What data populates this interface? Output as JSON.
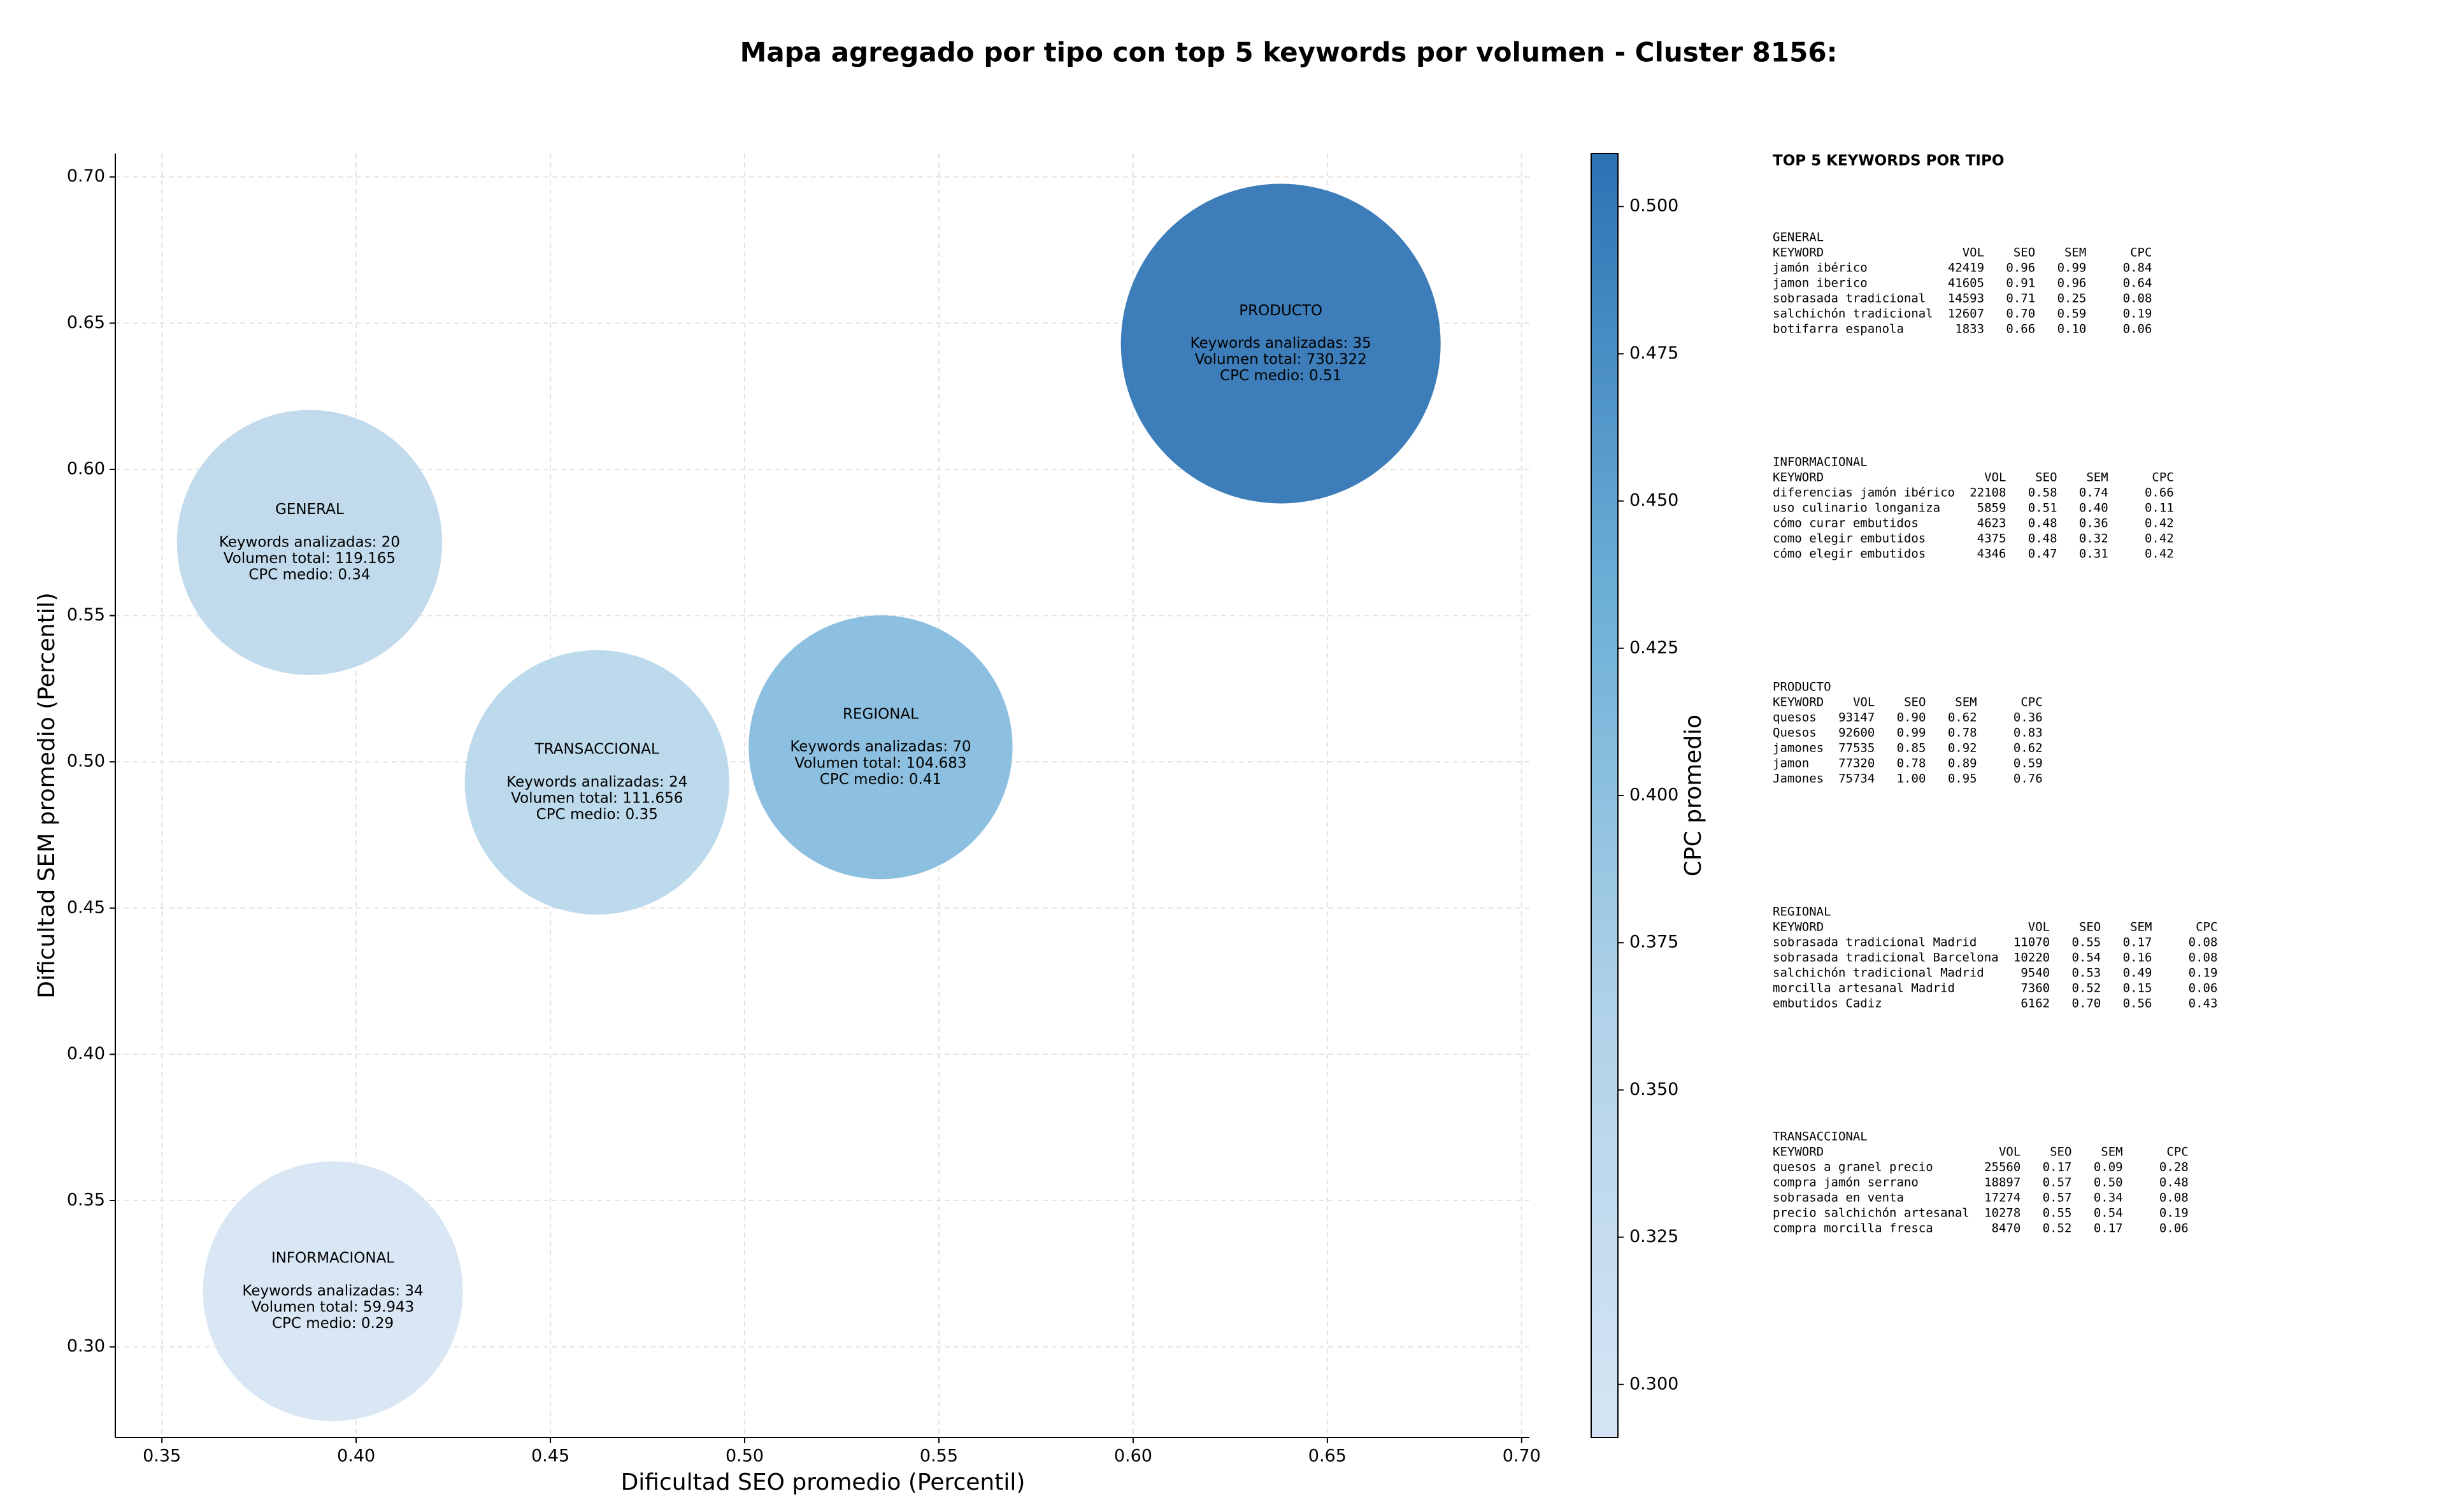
{
  "chart_data": {
    "type": "bubble",
    "title": "Mapa agregado por tipo con top 5 keywords por volumen - Cluster 8156:",
    "xlabel": "Dificultad SEO promedio (Percentil)",
    "ylabel": "Dificultad SEM promedio (Percentil)",
    "names": [
      "GENERAL",
      "TRANSACCIONAL",
      "REGIONAL",
      "PRODUCTO",
      "INFORMACIONAL"
    ],
    "x": [
      0.388,
      0.462,
      0.535,
      0.638,
      0.394
    ],
    "y": [
      0.575,
      0.493,
      0.505,
      0.643,
      0.319
    ],
    "sizes": [
      119165,
      111656,
      104683,
      730322,
      59943
    ],
    "cpc": [
      0.34,
      0.35,
      0.41,
      0.51,
      0.29
    ],
    "annotations": [
      [
        "Keywords analizadas: 20",
        "Volumen total: 119.165",
        "CPC medio: 0.34"
      ],
      [
        "Keywords analizadas: 24",
        "Volumen total: 111.656",
        "CPC medio: 0.35"
      ],
      [
        "Keywords analizadas: 70",
        "Volumen total: 104.683",
        "CPC medio: 0.41"
      ],
      [
        "Keywords analizadas: 35",
        "Volumen total: 730.322",
        "CPC medio: 0.51"
      ],
      [
        "Keywords analizadas: 34",
        "Volumen total: 59.943",
        "CPC medio: 0.29"
      ]
    ],
    "xlim": [
      0.338,
      0.702
    ],
    "ylim": [
      0.269,
      0.708
    ],
    "xticks": [
      0.35,
      {
        "value": 0.4,
        "label": "0.40"
      },
      0.45,
      {
        "value": 0.5,
        "label": "0.50"
      },
      0.55,
      {
        "value": 0.6,
        "label": "0.60"
      },
      0.65,
      {
        "value": 0.7,
        "label": "0.70"
      }
    ],
    "yticks": [
      {
        "value": 0.3,
        "label": "0.30"
      },
      0.35,
      {
        "value": 0.4,
        "label": "0.40"
      },
      0.45,
      {
        "value": 0.5,
        "label": "0.50"
      },
      0.55,
      {
        "value": 0.6,
        "label": "0.60"
      },
      0.65,
      {
        "value": 0.7,
        "label": "0.70"
      }
    ],
    "grid": true,
    "colorbar": {
      "label": "CPC promedio",
      "clim": [
        0.291,
        0.509
      ],
      "colormap": [
        "#d6e5f4",
        "#b0d2e8",
        "#6aaed6",
        "#2c72b4"
      ],
      "ticks": [
        {
          "value": 0.3,
          "label": "0.300"
        },
        0.325,
        {
          "value": 0.35,
          "label": "0.350"
        },
        0.375,
        {
          "value": 0.4,
          "label": "0.400"
        },
        0.425,
        {
          "value": 0.45,
          "label": "0.450"
        },
        0.475,
        {
          "value": 0.5,
          "label": "0.500"
        }
      ]
    }
  },
  "side_panel": {
    "title": "TOP 5 KEYWORDS POR TIPO",
    "columns": [
      "KEYWORD",
      "VOL",
      "SEO",
      "SEM",
      "CPC"
    ],
    "tables": [
      {
        "name": "GENERAL",
        "rows": [
          [
            "jamón ibérico",
            "42419",
            "0.96",
            "0.99",
            "0.84"
          ],
          [
            "jamon iberico",
            "41605",
            "0.91",
            "0.96",
            "0.64"
          ],
          [
            "sobrasada tradicional",
            "14593",
            "0.71",
            "0.25",
            "0.08"
          ],
          [
            "salchichón tradicional",
            "12607",
            "0.70",
            "0.59",
            "0.19"
          ],
          [
            "botifarra espanola",
            "1833",
            "0.66",
            "0.10",
            "0.06"
          ]
        ]
      },
      {
        "name": "INFORMACIONAL",
        "rows": [
          [
            "diferencias jamón ibérico",
            "22108",
            "0.58",
            "0.74",
            "0.66"
          ],
          [
            "uso culinario longaniza",
            "5859",
            "0.51",
            "0.40",
            "0.11"
          ],
          [
            "cómo curar embutidos",
            "4623",
            "0.48",
            "0.36",
            "0.42"
          ],
          [
            "como elegir embutidos",
            "4375",
            "0.48",
            "0.32",
            "0.42"
          ],
          [
            "cómo elegir embutidos",
            "4346",
            "0.47",
            "0.31",
            "0.42"
          ]
        ]
      },
      {
        "name": "PRODUCTO",
        "rows": [
          [
            "quesos",
            "93147",
            "0.90",
            "0.62",
            "0.36"
          ],
          [
            "Quesos",
            "92600",
            "0.99",
            "0.78",
            "0.83"
          ],
          [
            "jamones",
            "77535",
            "0.85",
            "0.92",
            "0.62"
          ],
          [
            "jamon",
            "77320",
            "0.78",
            "0.89",
            "0.59"
          ],
          [
            "Jamones",
            "75734",
            "1.00",
            "0.95",
            "0.76"
          ]
        ]
      },
      {
        "name": "REGIONAL",
        "rows": [
          [
            "sobrasada tradicional Madrid",
            "11070",
            "0.55",
            "0.17",
            "0.08"
          ],
          [
            "sobrasada tradicional Barcelona",
            "10220",
            "0.54",
            "0.16",
            "0.08"
          ],
          [
            "salchichón tradicional Madrid",
            "9540",
            "0.53",
            "0.49",
            "0.19"
          ],
          [
            "morcilla artesanal Madrid",
            "7360",
            "0.52",
            "0.15",
            "0.06"
          ],
          [
            "embutidos Cadiz",
            "6162",
            "0.70",
            "0.56",
            "0.43"
          ]
        ]
      },
      {
        "name": "TRANSACCIONAL",
        "rows": [
          [
            "quesos a granel precio",
            "25560",
            "0.17",
            "0.09",
            "0.28"
          ],
          [
            "compra jamón serrano",
            "18897",
            "0.57",
            "0.50",
            "0.48"
          ],
          [
            "sobrasada en venta",
            "17274",
            "0.57",
            "0.34",
            "0.08"
          ],
          [
            "precio salchichón artesanal",
            "10278",
            "0.55",
            "0.54",
            "0.19"
          ],
          [
            "compra morcilla fresca",
            "8470",
            "0.52",
            "0.17",
            "0.06"
          ]
        ]
      }
    ]
  }
}
